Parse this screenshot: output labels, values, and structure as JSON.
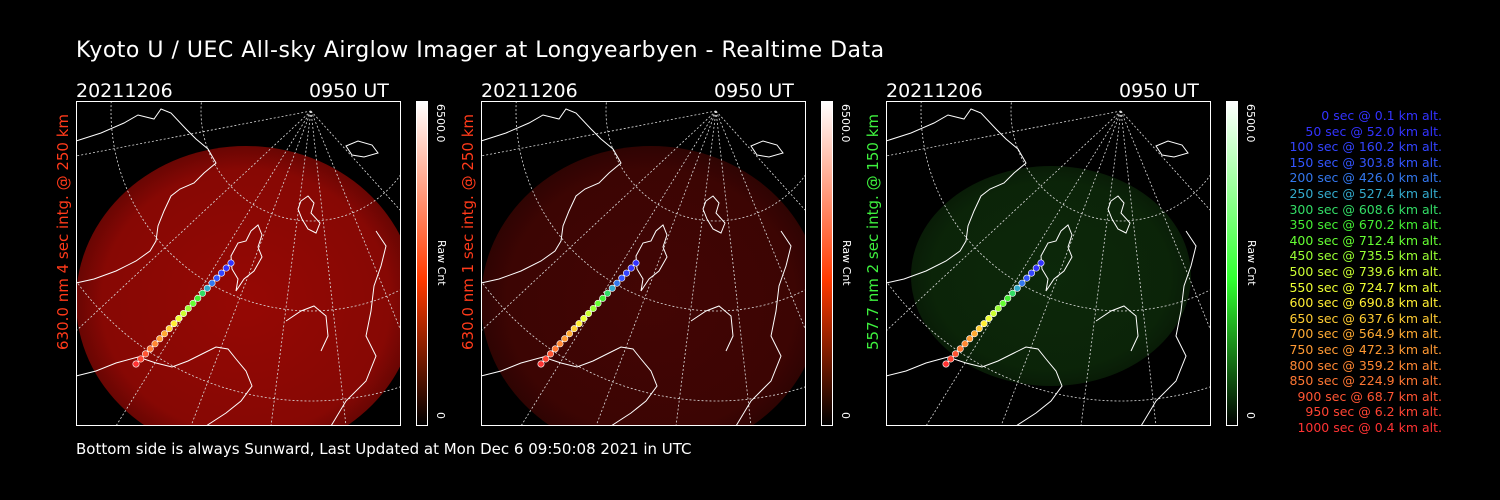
{
  "title": "Kyoto U / UEC All-sky Airglow Imager at Longyearbyen - Realtime Data",
  "footer": "Bottom side is always Sunward, Last Updated at Mon Dec  6 09:50:08 2021 in UTC",
  "panels": [
    {
      "date": "20211206",
      "time": "0950 UT",
      "ylabel": "630.0 nm 4 sec intg. @ 250 km",
      "ylabel_color": "#ff3a1a",
      "cb_max": "6500.0",
      "cb_min": "0",
      "cb_unit": "Raw Cnt",
      "bar_color": "#ff3a00",
      "glow_color": "#b00a05",
      "glow_opacity": 0.85
    },
    {
      "date": "20211206",
      "time": "0950 UT",
      "ylabel": "630.0 nm 1 sec intg. @ 250 km",
      "ylabel_color": "#ff3a1a",
      "cb_max": "6500.0",
      "cb_min": "0",
      "cb_unit": "Raw Cnt",
      "bar_color": "#ff3a00",
      "glow_color": "#4a0604",
      "glow_opacity": 0.9
    },
    {
      "date": "20211206",
      "time": "0950 UT",
      "ylabel": "557.7 nm 2 sec intg. @ 150 km",
      "ylabel_color": "#3ef03e",
      "cb_max": "6500.0",
      "cb_min": "0",
      "cb_unit": "Raw Cnt",
      "bar_color": "#30ff30",
      "glow_color": "#0d2a0a",
      "glow_opacity": 0.95
    }
  ],
  "legend": [
    {
      "text": "0 sec @   0.1 km alt.",
      "color": "#3333ff"
    },
    {
      "text": "50 sec @  52.0 km alt.",
      "color": "#3333ff"
    },
    {
      "text": "100 sec @ 160.2 km alt.",
      "color": "#3344ff"
    },
    {
      "text": "150 sec @ 303.8 km alt.",
      "color": "#3355ff"
    },
    {
      "text": "200 sec @ 426.0 km alt.",
      "color": "#3377ee"
    },
    {
      "text": "250 sec @ 527.4 km alt.",
      "color": "#33aacc"
    },
    {
      "text": "300 sec @ 608.6 km alt.",
      "color": "#33dd66"
    },
    {
      "text": "350 sec @ 670.2 km alt.",
      "color": "#44ee33"
    },
    {
      "text": "400 sec @ 712.4 km alt.",
      "color": "#66ff33"
    },
    {
      "text": "450 sec @ 735.5 km alt.",
      "color": "#99ff33"
    },
    {
      "text": "500 sec @ 739.6 km alt.",
      "color": "#ccff33"
    },
    {
      "text": "550 sec @ 724.7 km alt.",
      "color": "#eeff33"
    },
    {
      "text": "600 sec @ 690.8 km alt.",
      "color": "#ffee33"
    },
    {
      "text": "650 sec @ 637.6 km alt.",
      "color": "#ffcc33"
    },
    {
      "text": "700 sec @ 564.9 km alt.",
      "color": "#ffaa33"
    },
    {
      "text": "750 sec @ 472.3 km alt.",
      "color": "#ff9933"
    },
    {
      "text": "800 sec @ 359.2 km alt.",
      "color": "#ff8833"
    },
    {
      "text": "850 sec @ 224.9 km alt.",
      "color": "#ff7733"
    },
    {
      "text": "900 sec @  68.7 km alt.",
      "color": "#ff5533"
    },
    {
      "text": "950 sec @   6.2 km alt.",
      "color": "#ff4433"
    },
    {
      "text": "1000 sec @   0.4 km alt.",
      "color": "#ff3333"
    }
  ]
}
